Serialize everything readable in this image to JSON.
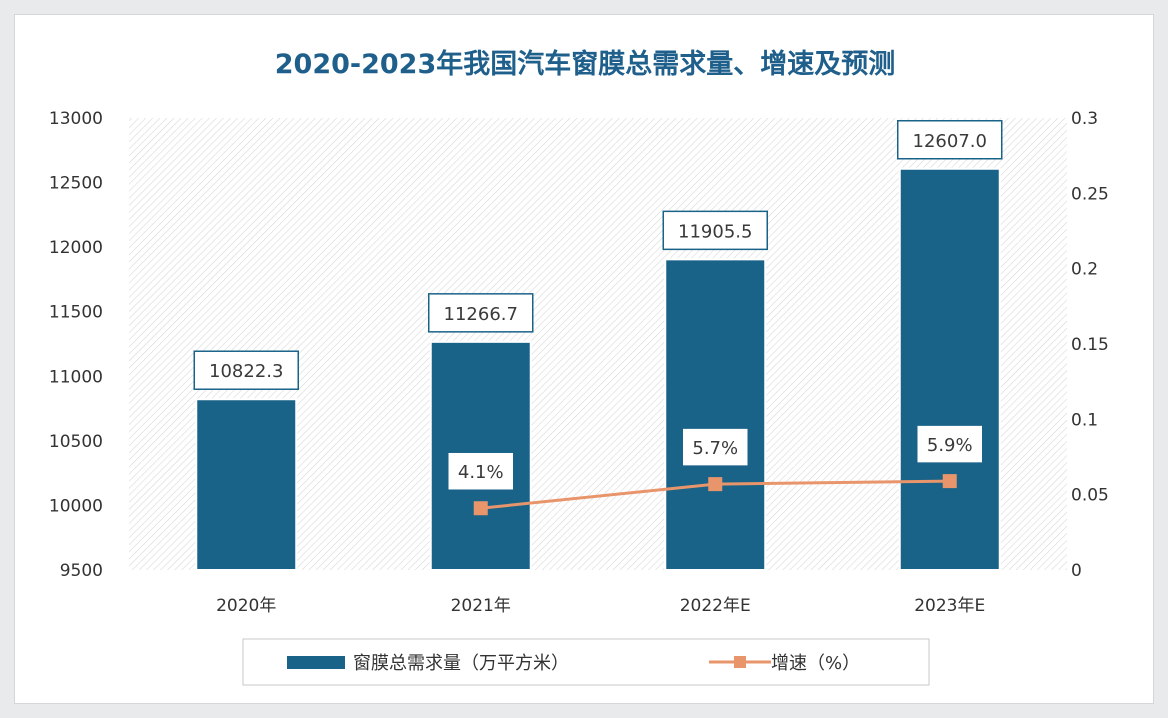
{
  "chart_data": {
    "type": "bar",
    "title": "2020-2023年我国汽车窗膜总需求量、增速及预测",
    "categories": [
      "2020年",
      "2021年",
      "2022年E",
      "2023年E"
    ],
    "series": [
      {
        "name": "窗膜总需求量（万平方米）",
        "type": "bar",
        "axis": "left",
        "values": [
          10822.3,
          11266.7,
          11905.5,
          12607.0
        ],
        "labels": [
          "10822.3",
          "11266.7",
          "11905.5",
          "12607.0"
        ],
        "color": "#1a6388"
      },
      {
        "name": "增速（%）",
        "type": "line",
        "axis": "right",
        "values": [
          null,
          0.041,
          0.057,
          0.059
        ],
        "labels": [
          "",
          "4.1%",
          "5.7%",
          "5.9%"
        ],
        "color": "#e8956b"
      }
    ],
    "y_left": {
      "min": 9500,
      "max": 13000,
      "ticks": [
        "9500",
        "10000",
        "10500",
        "11000",
        "11500",
        "12000",
        "12500",
        "13000"
      ]
    },
    "y_right": {
      "min": 0,
      "max": 0.3,
      "ticks": [
        "0",
        "0.05",
        "0.1",
        "0.15",
        "0.2",
        "0.25",
        "0.3"
      ]
    },
    "legend_position": "bottom",
    "background": "diagonal-hatch"
  },
  "colors": {
    "title": "#1f5f8b",
    "bar": "#1a6388",
    "line": "#e8956b",
    "label_border": "#1a6388"
  }
}
